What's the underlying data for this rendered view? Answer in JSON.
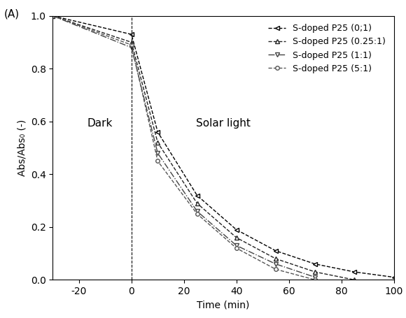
{
  "chart_data": {
    "type": "line",
    "panel_label": "(A)",
    "x_label": "Time (min)",
    "y_label": "Abs/Abs₀ (-)",
    "annotations": [
      "Dark",
      "Solar light"
    ],
    "divider": 0,
    "x": [
      -30,
      0,
      10,
      25,
      40,
      55,
      70,
      85,
      100
    ],
    "series": [
      {
        "name": "S-doped P25 (0;1)",
        "color": "#000000",
        "marker": "triangle_left",
        "line_style": "dashed",
        "values": [
          1.0,
          0.93,
          0.56,
          0.32,
          0.19,
          0.11,
          0.06,
          0.03,
          0.01
        ]
      },
      {
        "name": "S-doped P25 (0.25:1)",
        "color": "#222222",
        "marker": "triangle_up",
        "line_style": "dashed",
        "values": [
          1.0,
          0.9,
          0.52,
          0.29,
          0.16,
          0.08,
          0.03,
          0.0,
          null
        ]
      },
      {
        "name": "S-doped P25 (1:1)",
        "color": "#444444",
        "marker": "triangle_down",
        "line_style": "dashdot",
        "values": [
          1.0,
          0.88,
          0.48,
          0.26,
          0.13,
          0.06,
          0.01,
          null,
          null
        ]
      },
      {
        "name": "S-doped P25 (5:1)",
        "color": "#555555",
        "marker": "circle",
        "line_style": "dashed",
        "values": [
          1.0,
          0.89,
          0.45,
          0.25,
          0.12,
          0.04,
          0.0,
          null,
          null
        ]
      }
    ],
    "xlim": [
      -30,
      100
    ],
    "xticks": [
      -20,
      0,
      20,
      40,
      60,
      80,
      100
    ],
    "ylim": [
      0,
      1.0
    ],
    "yticks": [
      {
        "value": 0,
        "label": "0.0"
      },
      {
        "value": 0.2,
        "label": "0.2"
      },
      {
        "value": 0.4,
        "label": "0.4"
      },
      {
        "value": 0.6,
        "label": "0.6"
      },
      {
        "value": 0.8,
        "label": "0.8"
      },
      {
        "value": 1.0,
        "label": "1.0"
      }
    ],
    "legend": "upper right",
    "grid": false
  }
}
